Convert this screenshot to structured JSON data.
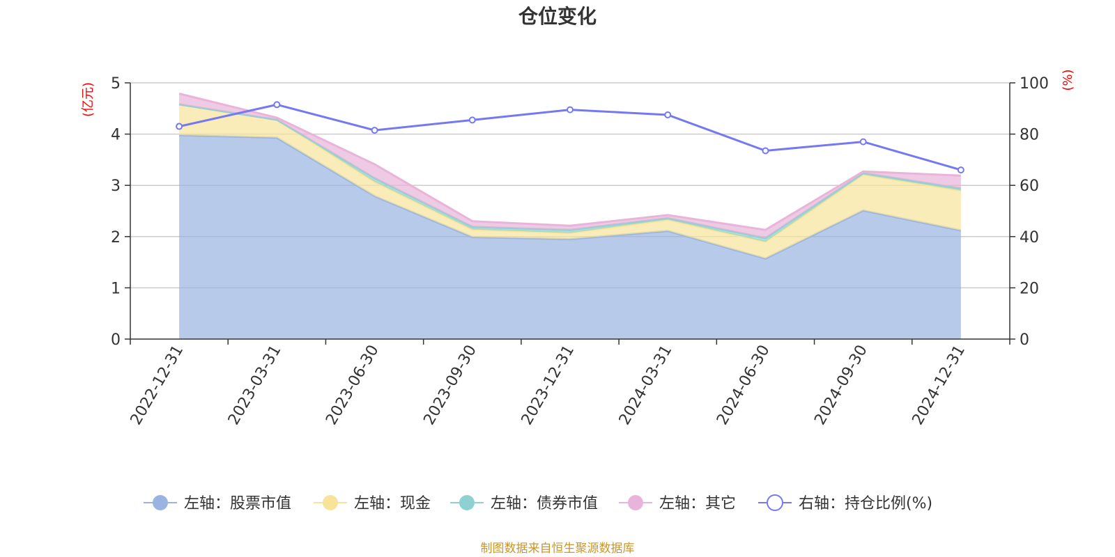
{
  "title": "仓位变化",
  "source_note": "制图数据来自恒生聚源数据库",
  "colors": {
    "stock": "#99b4e0",
    "cash": "#f7e49a",
    "bond": "#8fd1d2",
    "other": "#e8b4d9",
    "ratio": "#7479f2",
    "grid": "#cccccc",
    "axis": "#333333",
    "unit": "#ff0000"
  },
  "chart_data": {
    "type": "area",
    "title": "仓位变化",
    "categories": [
      "2022-12-31",
      "2023-03-31",
      "2023-06-30",
      "2023-09-30",
      "2023-12-31",
      "2024-03-31",
      "2024-06-30",
      "2024-09-30",
      "2024-12-31"
    ],
    "left_axis": {
      "label": "(亿元)",
      "ylim": [
        0,
        5
      ],
      "ticks": [
        "0",
        "1",
        "2",
        "3",
        "4",
        "5"
      ]
    },
    "right_axis": {
      "label": "(%)",
      "ylim": [
        0,
        100
      ],
      "ticks": [
        "0",
        "20",
        "40",
        "60",
        "80",
        "100"
      ]
    },
    "stacked": true,
    "grid": true,
    "legend_position": "bottom",
    "series": [
      {
        "key": "stock",
        "name": "左轴：股票市值",
        "axis": "left",
        "kind": "area",
        "values": [
          3.98,
          3.93,
          2.79,
          1.99,
          1.95,
          2.11,
          1.57,
          2.51,
          2.12
        ]
      },
      {
        "key": "cash",
        "name": "左轴：现金",
        "axis": "left",
        "kind": "area",
        "values": [
          0.6,
          0.35,
          0.28,
          0.15,
          0.12,
          0.22,
          0.33,
          0.7,
          0.78
        ]
      },
      {
        "key": "bond",
        "name": "左轴：债券市值",
        "axis": "left",
        "kind": "area",
        "values": [
          0.0,
          0.0,
          0.07,
          0.05,
          0.06,
          0.03,
          0.07,
          0.03,
          0.04
        ]
      },
      {
        "key": "other",
        "name": "左轴：其它",
        "axis": "left",
        "kind": "area",
        "values": [
          0.21,
          0.04,
          0.27,
          0.11,
          0.08,
          0.06,
          0.16,
          0.03,
          0.25
        ]
      },
      {
        "key": "ratio",
        "name": "右轴：持仓比例(%)",
        "axis": "right",
        "kind": "line",
        "values": [
          83.0,
          91.5,
          81.5,
          85.5,
          89.5,
          87.5,
          73.5,
          77.0,
          66.0
        ]
      }
    ]
  }
}
